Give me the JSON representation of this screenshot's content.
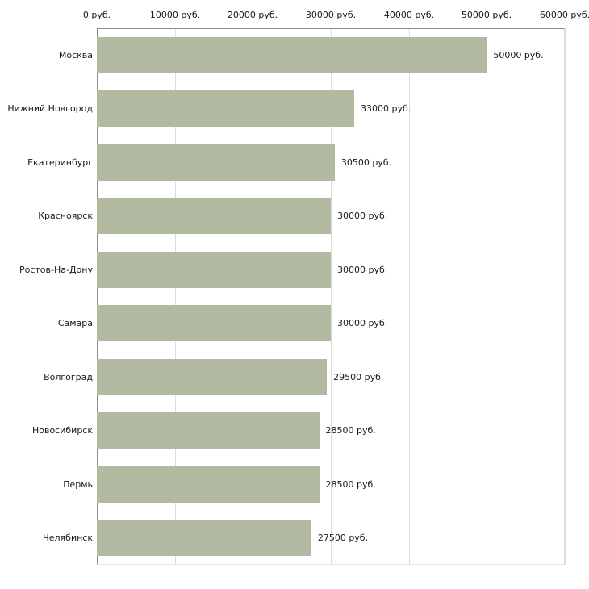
{
  "chart_data": {
    "type": "bar",
    "orientation": "horizontal",
    "title": "",
    "xlabel": "",
    "ylabel": "",
    "xlim": [
      0,
      60000
    ],
    "grid": true,
    "bar_color": "#b2bba1",
    "categories": [
      "Москва",
      "Нижний Новгород",
      "Екатеринбург",
      "Красноярск",
      "Ростов-На-Дону",
      "Самара",
      "Волгоград",
      "Новосибирск",
      "Пермь",
      "Челябинск"
    ],
    "values": [
      50000,
      33000,
      30500,
      30000,
      30000,
      30000,
      29500,
      28500,
      28500,
      27500
    ],
    "value_labels": [
      "50000 руб.",
      "33000 руб.",
      "30500 руб.",
      "30000 руб.",
      "30000 руб.",
      "30000 руб.",
      "29500 руб.",
      "28500 руб.",
      "28500 руб.",
      "27500 руб."
    ],
    "x_ticks": [
      0,
      10000,
      20000,
      30000,
      40000,
      50000,
      60000
    ],
    "x_tick_labels": [
      "0 руб.",
      "10000 руб.",
      "20000 руб.",
      "30000 руб.",
      "40000 руб.",
      "50000 руб.",
      "60000 руб."
    ]
  },
  "layout_colors": {
    "axis_line": "#8c8c8c",
    "grid_line": "#dcdcdc",
    "text": "#1a1a1a"
  }
}
